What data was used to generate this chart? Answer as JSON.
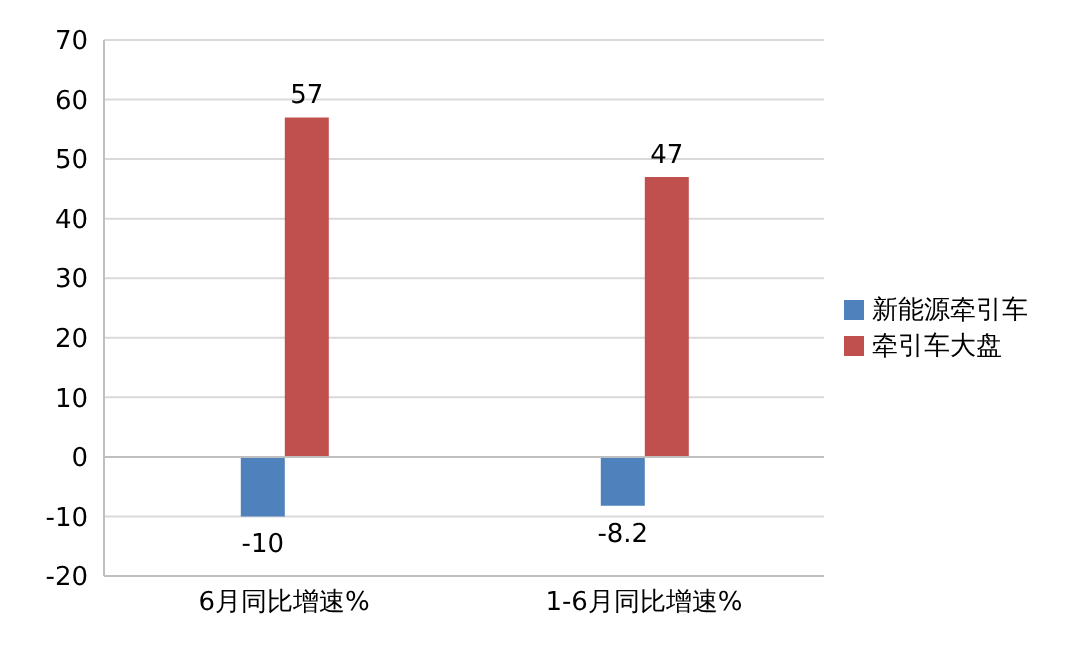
{
  "chart_data": {
    "type": "bar",
    "categories": [
      "6月同比增速%",
      "1-6月同比增速%"
    ],
    "series": [
      {
        "name": "新能源牵引车",
        "color": "#4f81bd",
        "values": [
          -10,
          -8.2
        ]
      },
      {
        "name": "牵引车大盘",
        "color": "#c0504d",
        "values": [
          57,
          47
        ]
      }
    ],
    "ylim": [
      -20,
      70
    ],
    "yticks": [
      -20,
      -10,
      0,
      10,
      20,
      30,
      40,
      50,
      60,
      70
    ],
    "grid": "y",
    "legend": "right",
    "data_labels": true
  }
}
